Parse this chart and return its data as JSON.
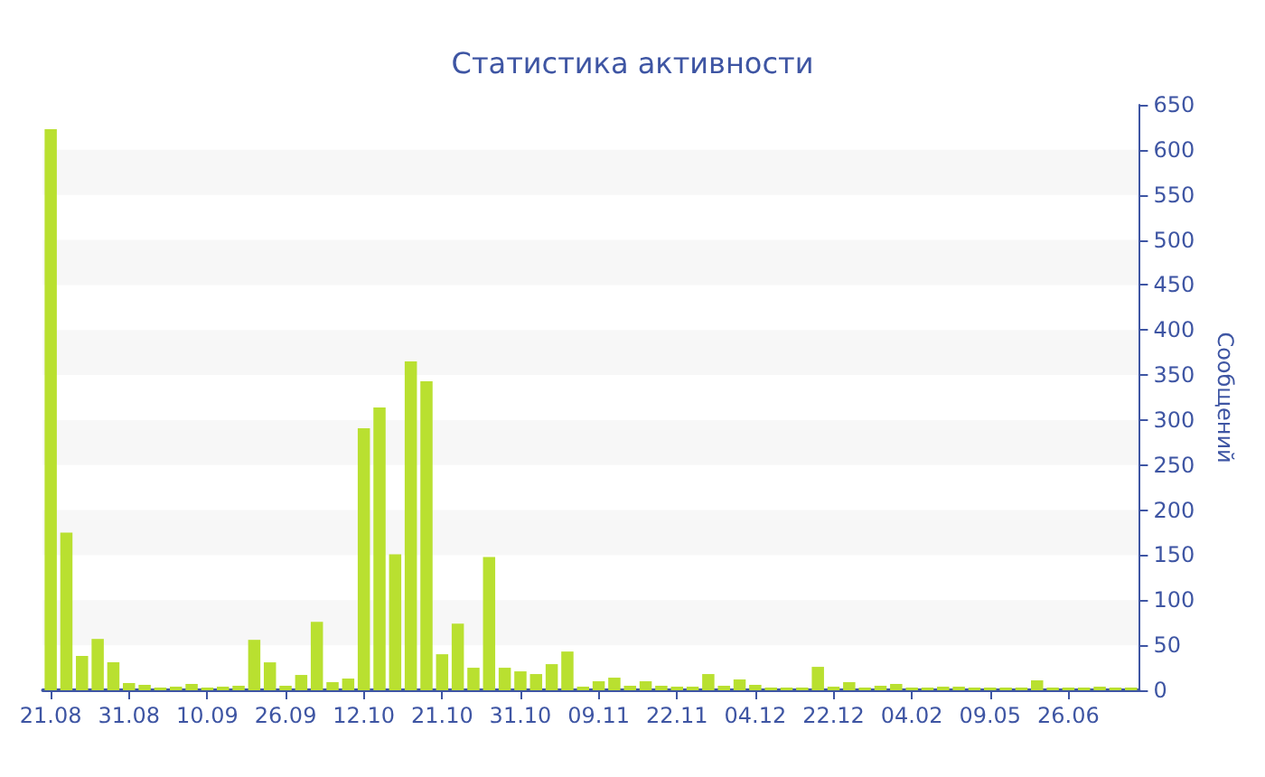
{
  "chart_data": {
    "type": "bar",
    "title": "Статистика активности",
    "ylabel": "Сообщений",
    "categories": [
      "21.08",
      null,
      null,
      null,
      null,
      "31.08",
      null,
      null,
      null,
      null,
      "10.09",
      null,
      null,
      null,
      null,
      "26.09",
      null,
      null,
      null,
      null,
      "12.10",
      null,
      null,
      null,
      null,
      "21.10",
      null,
      null,
      null,
      null,
      "31.10",
      null,
      null,
      null,
      null,
      "09.11",
      null,
      null,
      null,
      null,
      "22.11",
      null,
      null,
      null,
      null,
      "04.12",
      null,
      null,
      null,
      null,
      "22.12",
      null,
      null,
      null,
      null,
      "04.02",
      null,
      null,
      null,
      null,
      "09.05",
      null,
      null,
      null,
      null,
      "26.06",
      null,
      null,
      null,
      null
    ],
    "values": [
      623,
      175,
      38,
      57,
      31,
      8,
      6,
      3,
      4,
      7,
      3,
      4,
      5,
      56,
      31,
      5,
      17,
      76,
      9,
      13,
      291,
      314,
      151,
      365,
      343,
      40,
      74,
      25,
      148,
      25,
      21,
      18,
      29,
      43,
      4,
      10,
      14,
      5,
      10,
      5,
      4,
      4,
      18,
      5,
      12,
      6,
      3,
      3,
      3,
      26,
      4,
      9,
      3,
      5,
      7,
      3,
      3,
      4,
      4,
      3,
      3,
      3,
      3,
      11,
      3,
      3,
      3,
      4,
      3,
      3
    ],
    "color": "#b9e030",
    "ylim": [
      0,
      650
    ],
    "yticks": [
      0,
      50,
      100,
      150,
      200,
      250,
      300,
      350,
      400,
      450,
      500,
      550,
      600,
      650
    ]
  }
}
